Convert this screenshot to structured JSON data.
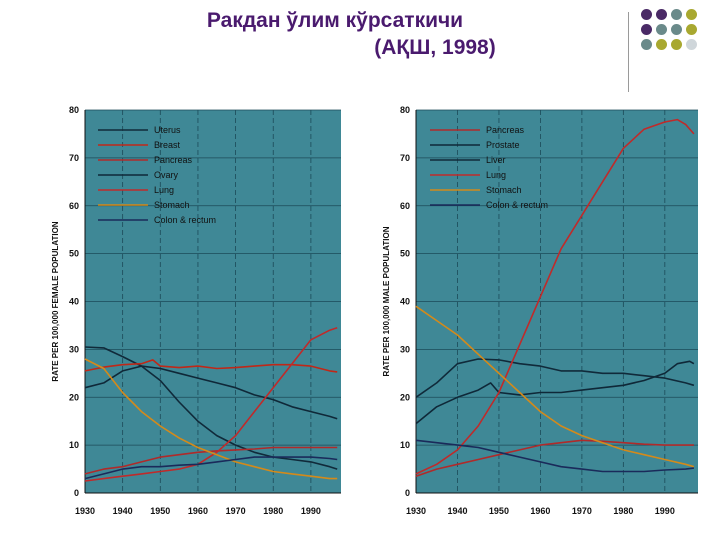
{
  "title": {
    "line1": "Ракдан ўлим кўрсаткичи",
    "line2": "(АҚШ, 1998)"
  },
  "decor": {
    "dot_colors": [
      "#4a2a66",
      "#4a2a66",
      "#6a8a8a",
      "#a8a830",
      "#4a2a66",
      "#6a8a8a",
      "#6a8a8a",
      "#a8a830",
      "#6a8a8a",
      "#a8a830",
      "#a8a830",
      "#cfd6da"
    ],
    "plot_bg": "#3f8896"
  },
  "chart_data": [
    {
      "type": "line",
      "title": "",
      "xlabel": "",
      "ylabel": "RATE PER 100,000 FEMALE POPULATION",
      "xlim": [
        1930,
        1998
      ],
      "ylim": [
        0,
        80
      ],
      "xticks": [
        1930,
        1940,
        1950,
        1960,
        1970,
        1980,
        1990
      ],
      "yticks": [
        0,
        10,
        20,
        30,
        40,
        50,
        60,
        70,
        80
      ],
      "grid": true,
      "legend": "top-left",
      "series": [
        {
          "name": "Uterus",
          "color": "#102a3a",
          "points": [
            [
              1930,
              30.5
            ],
            [
              1935,
              30.3
            ],
            [
              1940,
              28.5
            ],
            [
              1945,
              26.5
            ],
            [
              1950,
              23.5
            ],
            [
              1955,
              19
            ],
            [
              1960,
              15
            ],
            [
              1965,
              12
            ],
            [
              1970,
              10
            ],
            [
              1975,
              8.5
            ],
            [
              1980,
              7.5
            ],
            [
              1985,
              7
            ],
            [
              1990,
              6.5
            ],
            [
              1995,
              5.5
            ],
            [
              1997,
              5
            ]
          ]
        },
        {
          "name": "Breast",
          "color": "#c02818",
          "points": [
            [
              1930,
              25.5
            ],
            [
              1935,
              26.3
            ],
            [
              1940,
              26.8
            ],
            [
              1945,
              27
            ],
            [
              1948,
              27.8
            ],
            [
              1950,
              26.5
            ],
            [
              1955,
              26.2
            ],
            [
              1960,
              26.5
            ],
            [
              1965,
              26
            ],
            [
              1970,
              26.2
            ],
            [
              1975,
              26.5
            ],
            [
              1980,
              26.8
            ],
            [
              1985,
              26.8
            ],
            [
              1990,
              26.5
            ],
            [
              1995,
              25.5
            ],
            [
              1997,
              25.3
            ]
          ]
        },
        {
          "name": "Pancreas",
          "color": "#b02a2a",
          "points": [
            [
              1930,
              4
            ],
            [
              1935,
              5
            ],
            [
              1940,
              5.5
            ],
            [
              1945,
              6.5
            ],
            [
              1950,
              7.5
            ],
            [
              1955,
              8
            ],
            [
              1960,
              8.5
            ],
            [
              1965,
              8.8
            ],
            [
              1970,
              9
            ],
            [
              1975,
              9.2
            ],
            [
              1980,
              9.5
            ],
            [
              1985,
              9.5
            ],
            [
              1990,
              9.5
            ],
            [
              1995,
              9.5
            ],
            [
              1997,
              9.5
            ]
          ]
        },
        {
          "name": "Ovary",
          "color": "#0f2838",
          "points": [
            [
              1930,
              22
            ],
            [
              1935,
              23
            ],
            [
              1940,
              25.5
            ],
            [
              1945,
              26.5
            ],
            [
              1950,
              26
            ],
            [
              1955,
              25
            ],
            [
              1960,
              24
            ],
            [
              1965,
              23
            ],
            [
              1970,
              22
            ],
            [
              1975,
              20.5
            ],
            [
              1980,
              19.5
            ],
            [
              1985,
              18
            ],
            [
              1990,
              17
            ],
            [
              1995,
              16
            ],
            [
              1997,
              15.5
            ]
          ]
        },
        {
          "name": "Lung",
          "color": "#c02a2a",
          "points": [
            [
              1930,
              2.5
            ],
            [
              1935,
              3
            ],
            [
              1940,
              3.5
            ],
            [
              1945,
              4
            ],
            [
              1950,
              4.5
            ],
            [
              1955,
              5
            ],
            [
              1960,
              6
            ],
            [
              1965,
              8.5
            ],
            [
              1970,
              12
            ],
            [
              1975,
              17
            ],
            [
              1980,
              22
            ],
            [
              1985,
              27
            ],
            [
              1990,
              32
            ],
            [
              1995,
              34
            ],
            [
              1997,
              34.5
            ]
          ]
        },
        {
          "name": "Stomach",
          "color": "#d48a1a",
          "points": [
            [
              1930,
              28
            ],
            [
              1935,
              26
            ],
            [
              1940,
              21
            ],
            [
              1945,
              17
            ],
            [
              1950,
              14
            ],
            [
              1955,
              11.5
            ],
            [
              1960,
              9.5
            ],
            [
              1965,
              8
            ],
            [
              1970,
              6.5
            ],
            [
              1975,
              5.5
            ],
            [
              1980,
              4.5
            ],
            [
              1985,
              4
            ],
            [
              1990,
              3.5
            ],
            [
              1995,
              3
            ],
            [
              1997,
              3
            ]
          ]
        },
        {
          "name": "Colon & rectum",
          "color": "#1a2a5a",
          "points": [
            [
              1930,
              3
            ],
            [
              1935,
              4
            ],
            [
              1940,
              5
            ],
            [
              1945,
              5.5
            ],
            [
              1950,
              5.5
            ],
            [
              1955,
              5.8
            ],
            [
              1960,
              6
            ],
            [
              1965,
              6.5
            ],
            [
              1970,
              7
            ],
            [
              1975,
              7.5
            ],
            [
              1980,
              7.5
            ],
            [
              1985,
              7.5
            ],
            [
              1990,
              7.5
            ],
            [
              1995,
              7.2
            ],
            [
              1997,
              7
            ]
          ]
        }
      ]
    },
    {
      "type": "line",
      "title": "",
      "xlabel": "",
      "ylabel": "RATE PER 100,000 MALE POPULATION",
      "xlim": [
        1930,
        1998
      ],
      "ylim": [
        0,
        80
      ],
      "xticks": [
        1930,
        1940,
        1950,
        1960,
        1970,
        1980,
        1990
      ],
      "yticks": [
        0,
        10,
        20,
        30,
        40,
        50,
        60,
        70,
        80
      ],
      "grid": true,
      "legend": "top-left",
      "series": [
        {
          "name": "Pancreas",
          "color": "#b02a2a",
          "points": [
            [
              1930,
              3.5
            ],
            [
              1935,
              5
            ],
            [
              1940,
              6
            ],
            [
              1945,
              7
            ],
            [
              1950,
              8
            ],
            [
              1955,
              9
            ],
            [
              1960,
              10
            ],
            [
              1965,
              10.5
            ],
            [
              1970,
              11
            ],
            [
              1975,
              10.8
            ],
            [
              1980,
              10.5
            ],
            [
              1985,
              10.2
            ],
            [
              1990,
              10
            ],
            [
              1995,
              10
            ],
            [
              1997,
              10
            ]
          ]
        },
        {
          "name": "Prostate",
          "color": "#0f2838",
          "points": [
            [
              1930,
              14.5
            ],
            [
              1935,
              18
            ],
            [
              1940,
              20
            ],
            [
              1945,
              21.5
            ],
            [
              1948,
              23
            ],
            [
              1950,
              21
            ],
            [
              1955,
              20.5
            ],
            [
              1960,
              21
            ],
            [
              1965,
              21
            ],
            [
              1970,
              21.5
            ],
            [
              1975,
              22
            ],
            [
              1980,
              22.5
            ],
            [
              1985,
              23.5
            ],
            [
              1990,
              25
            ],
            [
              1993,
              27
            ],
            [
              1996,
              27.5
            ],
            [
              1997,
              27
            ]
          ]
        },
        {
          "name": "Liver",
          "color": "#102a3a",
          "points": [
            [
              1930,
              20
            ],
            [
              1935,
              23
            ],
            [
              1940,
              27
            ],
            [
              1945,
              28
            ],
            [
              1950,
              27.8
            ],
            [
              1955,
              27
            ],
            [
              1960,
              26.5
            ],
            [
              1965,
              25.5
            ],
            [
              1970,
              25.5
            ],
            [
              1975,
              25
            ],
            [
              1980,
              25
            ],
            [
              1985,
              24.5
            ],
            [
              1990,
              24
            ],
            [
              1995,
              23
            ],
            [
              1997,
              22.5
            ]
          ]
        },
        {
          "name": "Lung",
          "color": "#c02a2a",
          "points": [
            [
              1930,
              4
            ],
            [
              1935,
              6
            ],
            [
              1940,
              9
            ],
            [
              1945,
              14
            ],
            [
              1950,
              21
            ],
            [
              1955,
              31
            ],
            [
              1960,
              41
            ],
            [
              1965,
              51
            ],
            [
              1970,
              58
            ],
            [
              1975,
              65
            ],
            [
              1980,
              72
            ],
            [
              1985,
              76
            ],
            [
              1990,
              77.5
            ],
            [
              1993,
              78
            ],
            [
              1995,
              77
            ],
            [
              1997,
              75
            ]
          ]
        },
        {
          "name": "Stomach",
          "color": "#d48a1a",
          "points": [
            [
              1930,
              39
            ],
            [
              1935,
              36
            ],
            [
              1940,
              33
            ],
            [
              1945,
              29
            ],
            [
              1950,
              25
            ],
            [
              1955,
              21
            ],
            [
              1960,
              17
            ],
            [
              1965,
              14
            ],
            [
              1970,
              12
            ],
            [
              1975,
              10.5
            ],
            [
              1980,
              9
            ],
            [
              1985,
              8
            ],
            [
              1990,
              7
            ],
            [
              1995,
              6
            ],
            [
              1997,
              5.5
            ]
          ]
        },
        {
          "name": "Colon & rectum",
          "color": "#1a2a5a",
          "points": [
            [
              1930,
              11
            ],
            [
              1935,
              10.5
            ],
            [
              1940,
              10
            ],
            [
              1945,
              9.5
            ],
            [
              1950,
              8.5
            ],
            [
              1955,
              7.5
            ],
            [
              1960,
              6.5
            ],
            [
              1965,
              5.5
            ],
            [
              1970,
              5
            ],
            [
              1975,
              4.5
            ],
            [
              1980,
              4.5
            ],
            [
              1985,
              4.5
            ],
            [
              1990,
              4.8
            ],
            [
              1995,
              5
            ],
            [
              1997,
              5.2
            ]
          ]
        }
      ]
    }
  ]
}
